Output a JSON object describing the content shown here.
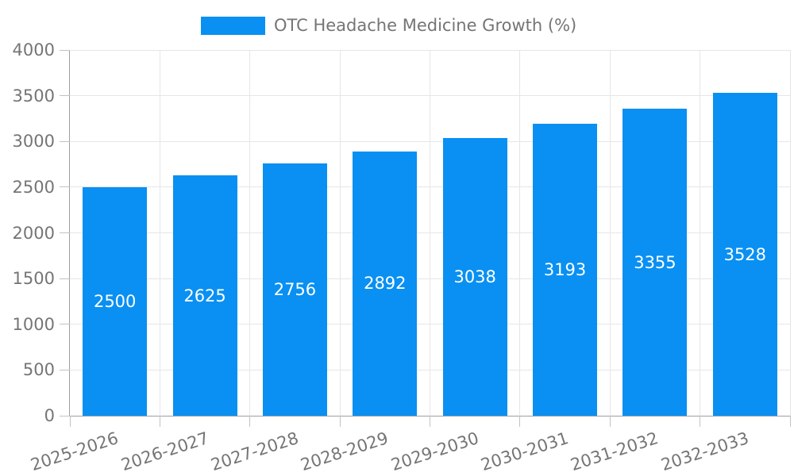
{
  "legend": {
    "label": "OTC Headache Medicine Growth (%)"
  },
  "chart_data": {
    "type": "bar",
    "title": "OTC Headache Medicine Growth (%)",
    "categories": [
      "2025-2026",
      "2026-2027",
      "2027-2028",
      "2028-2029",
      "2029-2030",
      "2030-2031",
      "2031-2032",
      "2032-2033"
    ],
    "values": [
      2500,
      2625,
      2756,
      2892,
      3038,
      3193,
      3355,
      3528
    ],
    "xlabel": "",
    "ylabel": "",
    "ylim": [
      0,
      4000
    ],
    "yticks": [
      0,
      500,
      1000,
      1500,
      2000,
      2500,
      3000,
      3500,
      4000
    ],
    "grid": true,
    "legend_position": "top-center",
    "x_label_rotation_deg": -18,
    "colors": {
      "bar": "#0990f2",
      "value_label": "#ffffff",
      "axis_text": "#757575",
      "gridline": "#e6e6e6",
      "axis_line": "#9e9e9e",
      "tick": "#c2c2c2",
      "background": "#ffffff"
    }
  }
}
